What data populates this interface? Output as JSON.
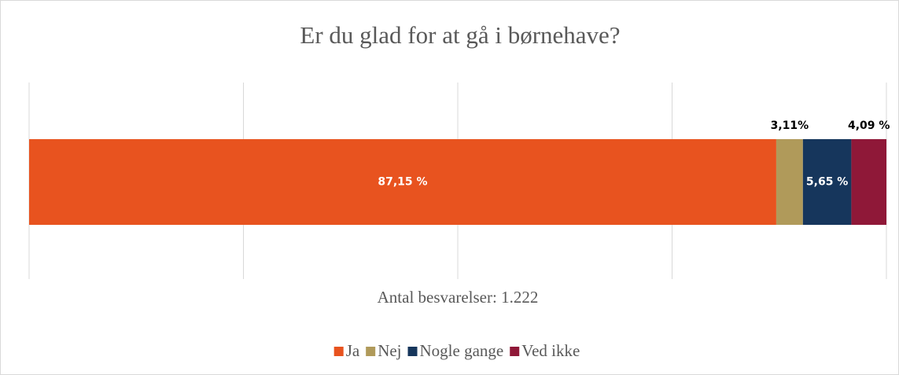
{
  "chart_data": {
    "type": "stacked_bar_horizontal",
    "title": "Er du glad for at gå i børnehave?",
    "xlabel": "Antal besvarelser: 1.222",
    "series": [
      {
        "name": "Ja",
        "color": "#e8531f",
        "values": [
          87.15
        ],
        "value_labels": [
          "87,15 %"
        ]
      },
      {
        "name": "Nej",
        "color": "#b09a5a",
        "values": [
          3.11
        ],
        "value_labels": [
          "3,11%"
        ]
      },
      {
        "name": "Nogle gange",
        "color": "#16365c",
        "values": [
          5.65
        ],
        "value_labels": [
          "5,65 %"
        ]
      },
      {
        "name": "Ved ikke",
        "color": "#8f1838",
        "values": [
          4.09
        ],
        "value_labels": [
          "4,09 %"
        ]
      }
    ],
    "xlim": [
      0,
      100
    ],
    "xticks": [
      0,
      25,
      50,
      75,
      100
    ],
    "grid": true,
    "legend": "bottom"
  }
}
